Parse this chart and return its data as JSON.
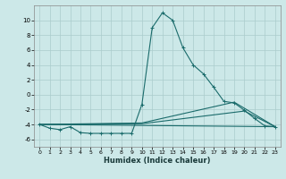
{
  "xlabel": "Humidex (Indice chaleur)",
  "xlim": [
    -0.5,
    23.5
  ],
  "ylim": [
    -7,
    12
  ],
  "yticks": [
    -6,
    -4,
    -2,
    0,
    2,
    4,
    6,
    8,
    10
  ],
  "xticks": [
    0,
    1,
    2,
    3,
    4,
    5,
    6,
    7,
    8,
    9,
    10,
    11,
    12,
    13,
    14,
    15,
    16,
    17,
    18,
    19,
    20,
    21,
    22,
    23
  ],
  "bg_color": "#cce8e8",
  "line_color": "#1a6b6b",
  "grid_color": "#aacccc",
  "lines": [
    {
      "x": [
        0,
        1,
        2,
        3,
        4,
        5,
        6,
        7,
        8,
        9,
        10,
        11,
        12,
        13,
        14,
        15,
        16,
        17,
        18,
        19,
        20,
        21,
        22,
        23
      ],
      "y": [
        -4.0,
        -4.5,
        -4.7,
        -4.3,
        -5.1,
        -5.2,
        -5.2,
        -5.2,
        -5.2,
        -5.2,
        -1.3,
        9.0,
        11.0,
        10.0,
        6.3,
        4.0,
        2.8,
        1.0,
        -0.9,
        -1.1,
        -2.1,
        -3.2,
        -4.2,
        -4.3
      ],
      "marker": true
    },
    {
      "x": [
        0,
        10,
        19,
        23
      ],
      "y": [
        -4.0,
        -3.8,
        -1.0,
        -4.3
      ],
      "marker": false
    },
    {
      "x": [
        0,
        10,
        20,
        23
      ],
      "y": [
        -4.0,
        -3.9,
        -2.2,
        -4.3
      ],
      "marker": false
    },
    {
      "x": [
        0,
        23
      ],
      "y": [
        -4.0,
        -4.3
      ],
      "marker": false
    }
  ]
}
